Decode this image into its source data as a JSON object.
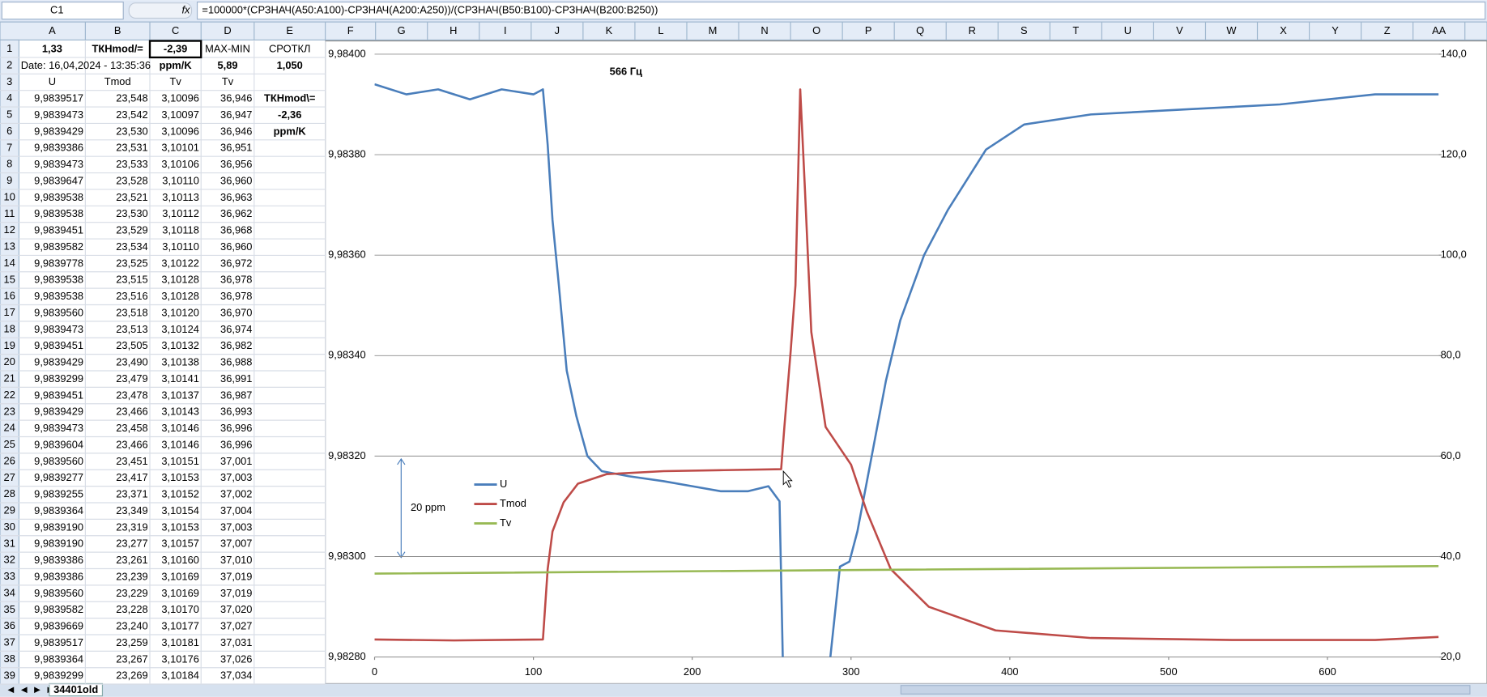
{
  "formula_bar": {
    "name_box": "C1",
    "fx": "fx",
    "formula": "=100000*(СРЗНАЧ(A50:A100)-СРЗНАЧ(A200:A250))/(СРЗНАЧ(B50:B100)-СРЗНАЧ(B200:B250))"
  },
  "sheet": {
    "column_headers": [
      "A",
      "B",
      "C",
      "D",
      "E",
      "F",
      "G",
      "H",
      "I",
      "J",
      "K",
      "L",
      "M",
      "N",
      "O",
      "P",
      "Q",
      "R",
      "S",
      "T",
      "U",
      "V",
      "W",
      "X",
      "Y",
      "Z",
      "AA"
    ],
    "row_headers": [
      1,
      2,
      3,
      4,
      5,
      6,
      7,
      8,
      9,
      10,
      11,
      12,
      13,
      14,
      15,
      16,
      17,
      18,
      19,
      20,
      21,
      22,
      23,
      24,
      25,
      26,
      27,
      28,
      29,
      30,
      31,
      32,
      33,
      34,
      35,
      36,
      37,
      38,
      39
    ],
    "rows": [
      [
        "1,33",
        "ТКНmod/=",
        "-2,39",
        "MAX-MIN",
        "СРОТКЛ"
      ],
      [
        "Date: 16,04,2024 - 13:35:36",
        null,
        "ppm/K",
        "5,89",
        "1,050"
      ],
      [
        "U",
        "Tmod",
        "Tv",
        "Tv",
        null
      ],
      [
        "9,9839517",
        "23,548",
        "3,10096",
        "36,946",
        "ТКНmod\\="
      ],
      [
        "9,9839473",
        "23,542",
        "3,10097",
        "36,947",
        "-2,36"
      ],
      [
        "9,9839429",
        "23,530",
        "3,10096",
        "36,946",
        "ppm/K"
      ],
      [
        "9,9839386",
        "23,531",
        "3,10101",
        "36,951",
        null
      ],
      [
        "9,9839473",
        "23,533",
        "3,10106",
        "36,956",
        null
      ],
      [
        "9,9839647",
        "23,528",
        "3,10110",
        "36,960",
        null
      ],
      [
        "9,9839538",
        "23,521",
        "3,10113",
        "36,963",
        null
      ],
      [
        "9,9839538",
        "23,530",
        "3,10112",
        "36,962",
        null
      ],
      [
        "9,9839451",
        "23,529",
        "3,10118",
        "36,968",
        null
      ],
      [
        "9,9839582",
        "23,534",
        "3,10110",
        "36,960",
        null
      ],
      [
        "9,9839778",
        "23,525",
        "3,10122",
        "36,972",
        null
      ],
      [
        "9,9839538",
        "23,515",
        "3,10128",
        "36,978",
        null
      ],
      [
        "9,9839538",
        "23,516",
        "3,10128",
        "36,978",
        null
      ],
      [
        "9,9839560",
        "23,518",
        "3,10120",
        "36,970",
        null
      ],
      [
        "9,9839473",
        "23,513",
        "3,10124",
        "36,974",
        null
      ],
      [
        "9,9839451",
        "23,505",
        "3,10132",
        "36,982",
        null
      ],
      [
        "9,9839429",
        "23,490",
        "3,10138",
        "36,988",
        null
      ],
      [
        "9,9839299",
        "23,479",
        "3,10141",
        "36,991",
        null
      ],
      [
        "9,9839451",
        "23,478",
        "3,10137",
        "36,987",
        null
      ],
      [
        "9,9839429",
        "23,466",
        "3,10143",
        "36,993",
        null
      ],
      [
        "9,9839473",
        "23,458",
        "3,10146",
        "36,996",
        null
      ],
      [
        "9,9839604",
        "23,466",
        "3,10146",
        "36,996",
        null
      ],
      [
        "9,9839560",
        "23,451",
        "3,10151",
        "37,001",
        null
      ],
      [
        "9,9839277",
        "23,417",
        "3,10153",
        "37,003",
        null
      ],
      [
        "9,9839255",
        "23,371",
        "3,10152",
        "37,002",
        null
      ],
      [
        "9,9839364",
        "23,349",
        "3,10154",
        "37,004",
        null
      ],
      [
        "9,9839190",
        "23,319",
        "3,10153",
        "37,003",
        null
      ],
      [
        "9,9839190",
        "23,277",
        "3,10157",
        "37,007",
        null
      ],
      [
        "9,9839386",
        "23,261",
        "3,10160",
        "37,010",
        null
      ],
      [
        "9,9839386",
        "23,239",
        "3,10169",
        "37,019",
        null
      ],
      [
        "9,9839560",
        "23,229",
        "3,10169",
        "37,019",
        null
      ],
      [
        "9,9839582",
        "23,228",
        "3,10170",
        "37,020",
        null
      ],
      [
        "9,9839669",
        "23,240",
        "3,10177",
        "37,027",
        null
      ],
      [
        "9,9839517",
        "23,259",
        "3,10181",
        "37,031",
        null
      ],
      [
        "9,9839364",
        "23,267",
        "3,10176",
        "37,026",
        null
      ],
      [
        "9,9839299",
        "23,269",
        "3,10184",
        "37,034",
        null
      ]
    ],
    "tab": "34401old"
  },
  "chart_data": {
    "type": "line",
    "title": "566 Гц",
    "annotation": "20 ppm",
    "xlim": [
      0,
      670
    ],
    "xticks": [
      0,
      100,
      200,
      300,
      400,
      500,
      600
    ],
    "ylim": [
      9.9828,
      9.984
    ],
    "yticks": [
      {
        "value": 9.9828,
        "label": "9,98280"
      },
      {
        "value": 9.983,
        "label": "9,98300"
      },
      {
        "value": 9.9832,
        "label": "9,98320"
      },
      {
        "value": 9.9834,
        "label": "9,98340"
      },
      {
        "value": 9.9836,
        "label": "9,98360"
      },
      {
        "value": 9.9838,
        "label": "9,98380"
      },
      {
        "value": 9.984,
        "label": "9,98400"
      }
    ],
    "y2lim": [
      20,
      140
    ],
    "y2ticks": [
      {
        "value": 20,
        "label": "20,0"
      },
      {
        "value": 40,
        "label": "40,0"
      },
      {
        "value": 60,
        "label": "60,0"
      },
      {
        "value": 80,
        "label": "80,0"
      },
      {
        "value": 100,
        "label": "100,0"
      },
      {
        "value": 120,
        "label": "120,0"
      },
      {
        "value": 140,
        "label": "140,0"
      }
    ],
    "grid": true,
    "series": [
      {
        "name": "U",
        "color": "#4a7ebb",
        "axis": "y",
        "x": [
          0,
          20,
          40,
          60,
          80,
          100,
          106,
          109,
          112,
          116,
          121,
          127,
          134,
          143,
          160,
          182,
          200,
          218,
          235,
          248,
          255,
          257,
          270,
          287,
          293,
          299,
          304,
          313,
          322,
          331,
          346,
          361,
          385,
          409,
          451,
          510,
          570,
          630,
          670
        ],
        "values": [
          9.98394,
          9.98392,
          9.98393,
          9.98391,
          9.98393,
          9.98392,
          9.98393,
          9.98382,
          9.98367,
          9.98354,
          9.98337,
          9.98328,
          9.9832,
          9.98317,
          9.98316,
          9.98315,
          9.98314,
          9.98313,
          9.98313,
          9.98314,
          9.98311,
          9.9828,
          null,
          9.9828,
          9.98298,
          9.98299,
          9.98305,
          9.9832,
          9.98335,
          9.98347,
          9.9836,
          9.98369,
          9.98381,
          9.98386,
          9.98388,
          9.98389,
          9.9839,
          9.98392,
          9.98392
        ]
      },
      {
        "name": "Tmod",
        "color": "#be4b48",
        "axis": "y2",
        "x": [
          0,
          50,
          106,
          109,
          112,
          119,
          128,
          146,
          182,
          220,
          256,
          258,
          262,
          265,
          268,
          271,
          275,
          284,
          300,
          310,
          325,
          349,
          391,
          451,
          540,
          630,
          670
        ],
        "values": [
          23.5,
          23.3,
          23.5,
          37.5,
          45,
          50.8,
          54.5,
          56.4,
          57,
          57.2,
          57.4,
          65.8,
          81,
          94,
          133,
          113,
          84.7,
          65.8,
          58.3,
          48.9,
          37.5,
          30,
          25.3,
          23.8,
          23.4,
          23.4,
          24
        ]
      },
      {
        "name": "Tv",
        "color": "#98b954",
        "axis": "y2",
        "x": [
          0,
          335,
          670
        ],
        "values": [
          36.6,
          37.4,
          38.1
        ]
      }
    ]
  }
}
